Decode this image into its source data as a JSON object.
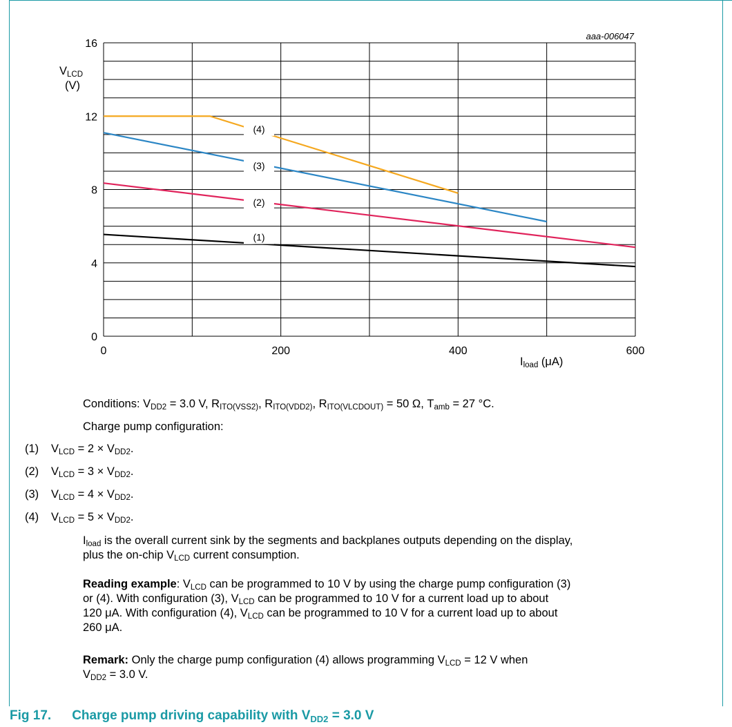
{
  "chart_data": {
    "type": "line",
    "figure_id": "aaa-006047",
    "ylabel_main": "V",
    "ylabel_sub": "LCD",
    "ylabel_unit": "(V)",
    "xlabel_main": "I",
    "xlabel_sub": "load",
    "xlabel_unit": " (μA)",
    "xlim": [
      0,
      600
    ],
    "ylim": [
      0,
      16
    ],
    "x_ticks": [
      "0",
      "200",
      "400",
      "600"
    ],
    "y_ticks": [
      "16",
      "12",
      "8",
      "4",
      "0"
    ],
    "series": [
      {
        "label": "(1)",
        "color": "#000000",
        "x": [
          0,
          600
        ],
        "y": [
          5.55,
          3.8
        ]
      },
      {
        "label": "(2)",
        "color": "#e0235b",
        "x": [
          0,
          600
        ],
        "y": [
          8.35,
          4.85
        ]
      },
      {
        "label": "(3)",
        "color": "#2b86c5",
        "x": [
          0,
          500
        ],
        "y": [
          11.1,
          6.25
        ]
      },
      {
        "label": "(4)",
        "color": "#f5a81f",
        "x": [
          0,
          120,
          400
        ],
        "y": [
          12.0,
          12.0,
          7.8
        ]
      }
    ],
    "grid": true
  },
  "text": {
    "conditions": {
      "p1": "Conditions: V",
      "s1": "DD2",
      "p2": " = 3.0 V, R",
      "s2": "ITO(VSS2)",
      "p3": ", R",
      "s3": "ITO(VDD2)",
      "p4": ", R",
      "s4": "ITO(VLCDOUT)",
      "p5": " = 50 Ω, T",
      "s5": "amb",
      "p6": " = 27 °C."
    },
    "config_heading": "Charge pump configuration:",
    "items": [
      {
        "num": "(1)",
        "a": "V",
        "sa": "LCD",
        "b": " = 2 × V",
        "sb": "DD2",
        "c": "."
      },
      {
        "num": "(2)",
        "a": "V",
        "sa": "LCD",
        "b": " = 3 × V",
        "sb": "DD2",
        "c": "."
      },
      {
        "num": "(3)",
        "a": "V",
        "sa": "LCD",
        "b": " = 4 × V",
        "sb": "DD2",
        "c": "."
      },
      {
        "num": "(4)",
        "a": "V",
        "sa": "LCD",
        "b": " = 5 × V",
        "sb": "DD2",
        "c": "."
      }
    ],
    "iload_para": {
      "a": "I",
      "sa": "load",
      "b": " is the overall current sink by the segments and backplanes outputs depending on the display,",
      "c": "plus the on-chip V",
      "sc": "LCD",
      "d": " current consumption."
    },
    "reading": {
      "bold": "Reading example",
      "l1a": ": V",
      "l1s": "LCD",
      "l1b": " can be programmed to 10 V by using the charge pump configuration (3)",
      "l2a": "or (4). With configuration (3), V",
      "l2s": "LCD",
      "l2b": " can be programmed to 10 V for a current load up to about",
      "l3a": "120 μA. With configuration (4), V",
      "l3s": "LCD",
      "l3b": " can be programmed to 10 V for a current load up to about",
      "l4": "260 μA."
    },
    "remark": {
      "bold": "Remark:",
      "l1a": " Only the charge pump configuration (4) allows programming V",
      "l1s": "LCD",
      "l1b": " = 12 V when",
      "l2a": "V",
      "l2s": "DD2",
      "l2b": " = 3.0 V."
    },
    "caption": {
      "fig": "Fig 17.",
      "a": "Charge pump driving capability with V",
      "s": "DD2",
      "b": " = 3.0 V"
    }
  }
}
